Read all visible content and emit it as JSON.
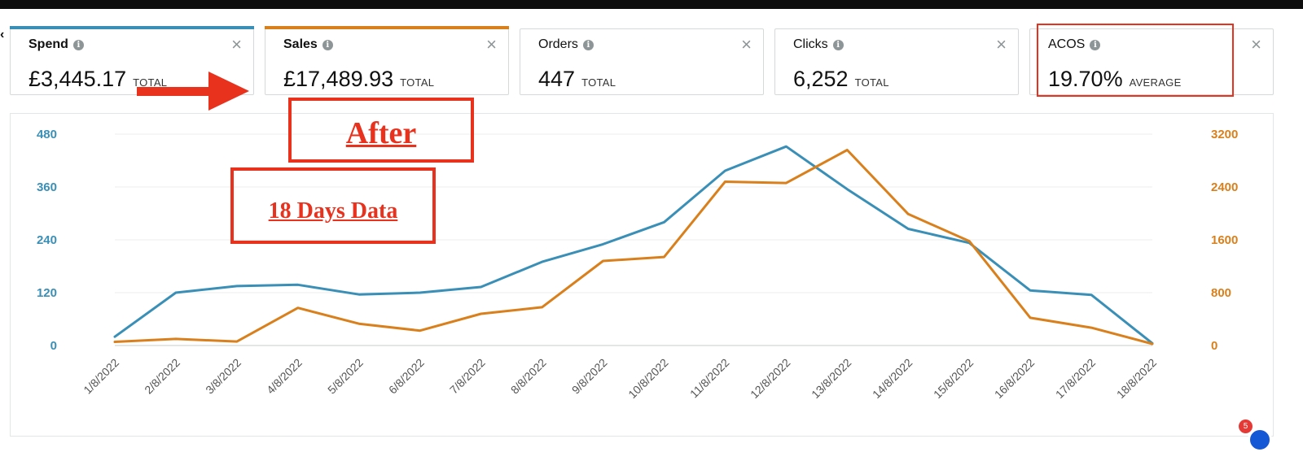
{
  "metrics": [
    {
      "title": "Spend",
      "value": "£3,445.17",
      "unit": "TOTAL",
      "accent": "#3a8fb7",
      "selected": true
    },
    {
      "title": "Sales",
      "value": "£17,489.93",
      "unit": "TOTAL",
      "accent": "#d9801c",
      "selected": true
    },
    {
      "title": "Orders",
      "value": "447",
      "unit": "TOTAL",
      "accent": "",
      "selected": false
    },
    {
      "title": "Clicks",
      "value": "6,252",
      "unit": "TOTAL",
      "accent": "",
      "selected": false
    },
    {
      "title": "ACOS",
      "value": "19.70%",
      "unit": "AVERAGE",
      "accent": "",
      "selected": false
    }
  ],
  "annotations": {
    "after": "After",
    "days": "18 Days Data"
  },
  "notification_count": "5",
  "chart_data": {
    "type": "line",
    "categories": [
      "1/8/2022",
      "2/8/2022",
      "3/8/2022",
      "4/8/2022",
      "5/8/2022",
      "6/8/2022",
      "7/8/2022",
      "8/8/2022",
      "9/8/2022",
      "10/8/2022",
      "11/8/2022",
      "12/8/2022",
      "13/8/2022",
      "14/8/2022",
      "15/8/2022",
      "16/8/2022",
      "17/8/2022",
      "18/8/2022"
    ],
    "series": [
      {
        "name": "Spend",
        "axis": "left",
        "color": "#3a8fb7",
        "values": [
          20,
          120,
          135,
          138,
          116,
          120,
          133,
          190,
          230,
          280,
          397,
          452,
          355,
          265,
          233,
          125,
          115,
          5
        ]
      },
      {
        "name": "Sales",
        "axis": "right",
        "color": "#d9801c",
        "values": [
          55,
          100,
          60,
          570,
          330,
          225,
          480,
          580,
          1280,
          1340,
          2480,
          2460,
          2960,
          1990,
          1580,
          420,
          270,
          25
        ]
      }
    ],
    "y_left": {
      "min": 0,
      "max": 480,
      "ticks": [
        "0",
        "120",
        "240",
        "360",
        "480"
      ],
      "color": "#3a8fb7"
    },
    "y_right": {
      "min": 0,
      "max": 3200,
      "ticks": [
        "0",
        "800",
        "1600",
        "2400",
        "3200"
      ],
      "color": "#d9801c"
    },
    "grid": true,
    "title": "",
    "xlabel": "",
    "ylabel": ""
  }
}
